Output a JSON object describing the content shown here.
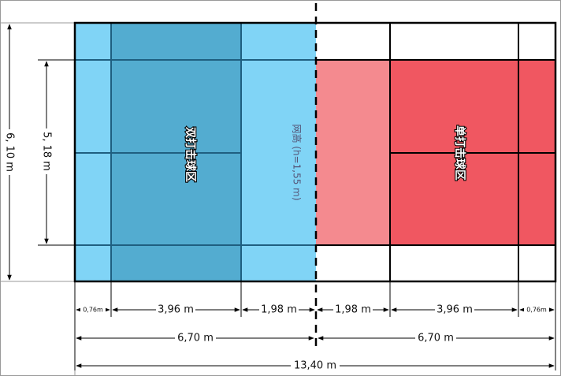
{
  "colors": {
    "doubles_light": "#80d4f6",
    "doubles_dark": "#53acd0",
    "singles_light": "#f48a8f",
    "singles_dark": "#f05761",
    "lines": "#1f5f80",
    "frame": "#000000"
  },
  "labels": {
    "doubles_zone": "双打击球区",
    "singles_zone": "单打击球区",
    "net": "网高 (h=1,55 m)"
  },
  "dimensions": {
    "width_total": "6, 10 m",
    "width_singles": "5, 18 m",
    "seg_alley_left": "0,76m",
    "seg_back_left": "3,96 m",
    "seg_front_left": "1,98 m",
    "seg_front_right": "1,98 m",
    "seg_back_right": "3,96 m",
    "seg_alley_right": "0,76m",
    "half_left": "6,70 m",
    "half_right": "6,70 m",
    "length_total": "13,40 m"
  }
}
